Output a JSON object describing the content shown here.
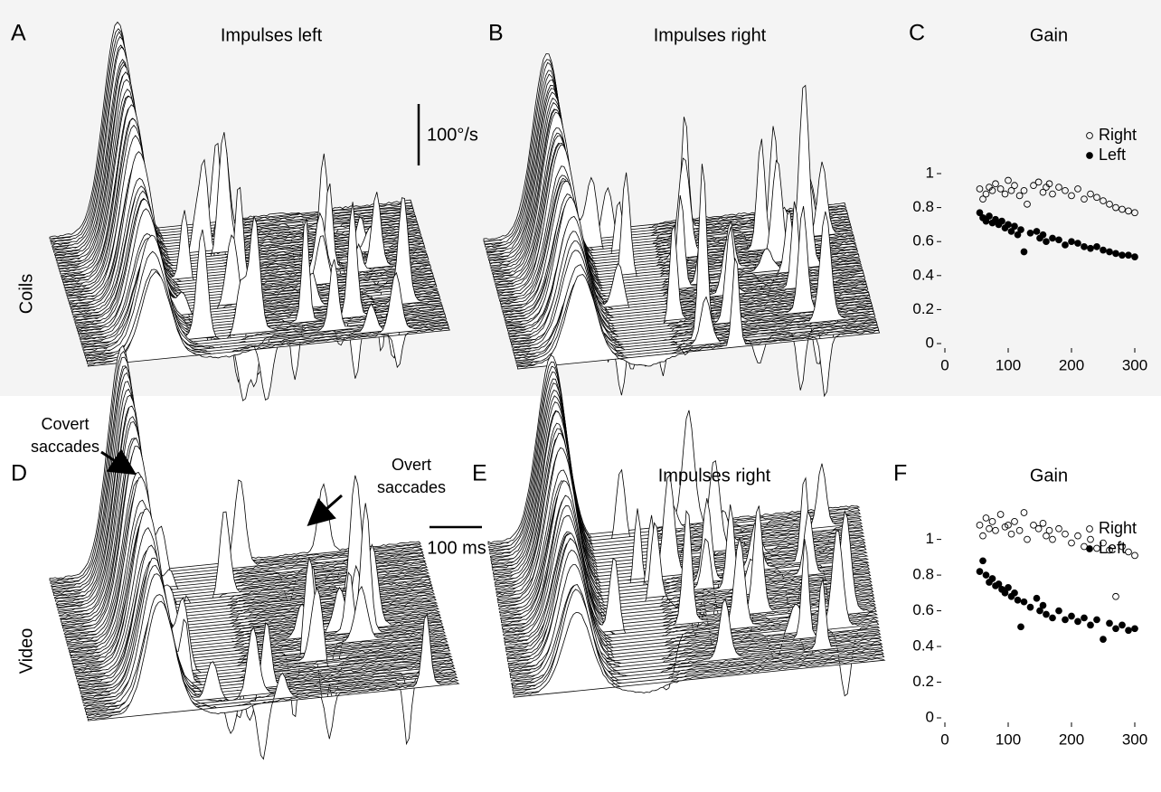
{
  "panels": [
    {
      "letter": "A",
      "title": "Impulses left"
    },
    {
      "letter": "B",
      "title": "Impulses right"
    },
    {
      "letter": "C"
    },
    {
      "letter": "D"
    },
    {
      "letter": "E",
      "title": "Impulses right"
    },
    {
      "letter": "F"
    }
  ],
  "row_labels": [
    "Coils",
    "Video"
  ],
  "scale_bars": [
    "100°/s",
    "100 ms"
  ],
  "annotations": [
    [
      "Covert",
      "saccades"
    ],
    [
      "Overt",
      "saccades"
    ]
  ],
  "chart_data": [
    {
      "type": "scatter",
      "title": "Gain",
      "xlim": [
        0,
        310
      ],
      "xticks": [
        0,
        100,
        200,
        300
      ],
      "ylim": [
        0,
        1
      ],
      "yticks": [
        0,
        0.2,
        0.4,
        0.6,
        0.8,
        1
      ],
      "legend": "upper right",
      "series": [
        {
          "name": "Right",
          "color": "#000000",
          "filled": false,
          "x": [
            55,
            60,
            65,
            70,
            75,
            80,
            88,
            95,
            100,
            105,
            110,
            118,
            125,
            130,
            140,
            148,
            155,
            160,
            165,
            170,
            180,
            190,
            200,
            210,
            220,
            230,
            240,
            250,
            260,
            270,
            280,
            290,
            300
          ],
          "values": [
            0.91,
            0.85,
            0.88,
            0.92,
            0.9,
            0.94,
            0.91,
            0.88,
            0.96,
            0.9,
            0.93,
            0.87,
            0.9,
            0.82,
            0.93,
            0.95,
            0.89,
            0.92,
            0.94,
            0.88,
            0.92,
            0.9,
            0.87,
            0.91,
            0.85,
            0.88,
            0.86,
            0.84,
            0.82,
            0.8,
            0.79,
            0.78,
            0.77
          ]
        },
        {
          "name": "Left",
          "color": "#000000",
          "filled": true,
          "x": [
            55,
            60,
            65,
            70,
            75,
            80,
            85,
            90,
            95,
            100,
            105,
            110,
            115,
            120,
            125,
            135,
            145,
            150,
            155,
            160,
            170,
            180,
            190,
            200,
            210,
            220,
            230,
            240,
            250,
            260,
            270,
            280,
            290,
            300
          ],
          "values": [
            0.77,
            0.74,
            0.72,
            0.75,
            0.71,
            0.73,
            0.7,
            0.72,
            0.68,
            0.7,
            0.66,
            0.69,
            0.64,
            0.67,
            0.54,
            0.65,
            0.66,
            0.62,
            0.64,
            0.6,
            0.62,
            0.61,
            0.58,
            0.6,
            0.59,
            0.57,
            0.56,
            0.57,
            0.55,
            0.54,
            0.53,
            0.52,
            0.52,
            0.51
          ]
        }
      ]
    },
    {
      "type": "scatter",
      "title": "Gain",
      "xlim": [
        0,
        310
      ],
      "xticks": [
        0,
        100,
        200,
        300
      ],
      "ylim": [
        0,
        1.15
      ],
      "yticks": [
        0,
        0.2,
        0.4,
        0.6,
        0.8,
        1
      ],
      "legend": "upper right",
      "series": [
        {
          "name": "Right",
          "color": "#000000",
          "filled": false,
          "x": [
            55,
            60,
            65,
            70,
            75,
            80,
            88,
            95,
            100,
            105,
            110,
            118,
            125,
            130,
            140,
            148,
            155,
            160,
            165,
            170,
            180,
            190,
            200,
            210,
            220,
            230,
            240,
            250,
            260,
            270,
            280,
            290,
            300
          ],
          "values": [
            1.08,
            1.02,
            1.12,
            1.06,
            1.1,
            1.05,
            1.14,
            1.07,
            1.08,
            1.03,
            1.1,
            1.05,
            1.15,
            1.0,
            1.08,
            1.06,
            1.09,
            1.02,
            1.05,
            1.0,
            1.06,
            1.03,
            0.98,
            1.02,
            0.96,
            1.0,
            0.95,
            0.98,
            0.94,
            0.68,
            0.96,
            0.93,
            0.91
          ]
        },
        {
          "name": "Left",
          "color": "#000000",
          "filled": true,
          "x": [
            55,
            60,
            65,
            70,
            75,
            80,
            85,
            90,
            95,
            100,
            105,
            110,
            115,
            120,
            125,
            135,
            145,
            150,
            155,
            160,
            170,
            180,
            190,
            200,
            210,
            220,
            230,
            240,
            250,
            260,
            270,
            280,
            290,
            300
          ],
          "values": [
            0.82,
            0.88,
            0.8,
            0.76,
            0.78,
            0.74,
            0.75,
            0.72,
            0.7,
            0.73,
            0.68,
            0.7,
            0.66,
            0.51,
            0.65,
            0.62,
            0.67,
            0.6,
            0.63,
            0.58,
            0.56,
            0.6,
            0.55,
            0.57,
            0.54,
            0.56,
            0.52,
            0.55,
            0.44,
            0.53,
            0.5,
            0.52,
            0.49,
            0.5
          ]
        }
      ]
    }
  ]
}
